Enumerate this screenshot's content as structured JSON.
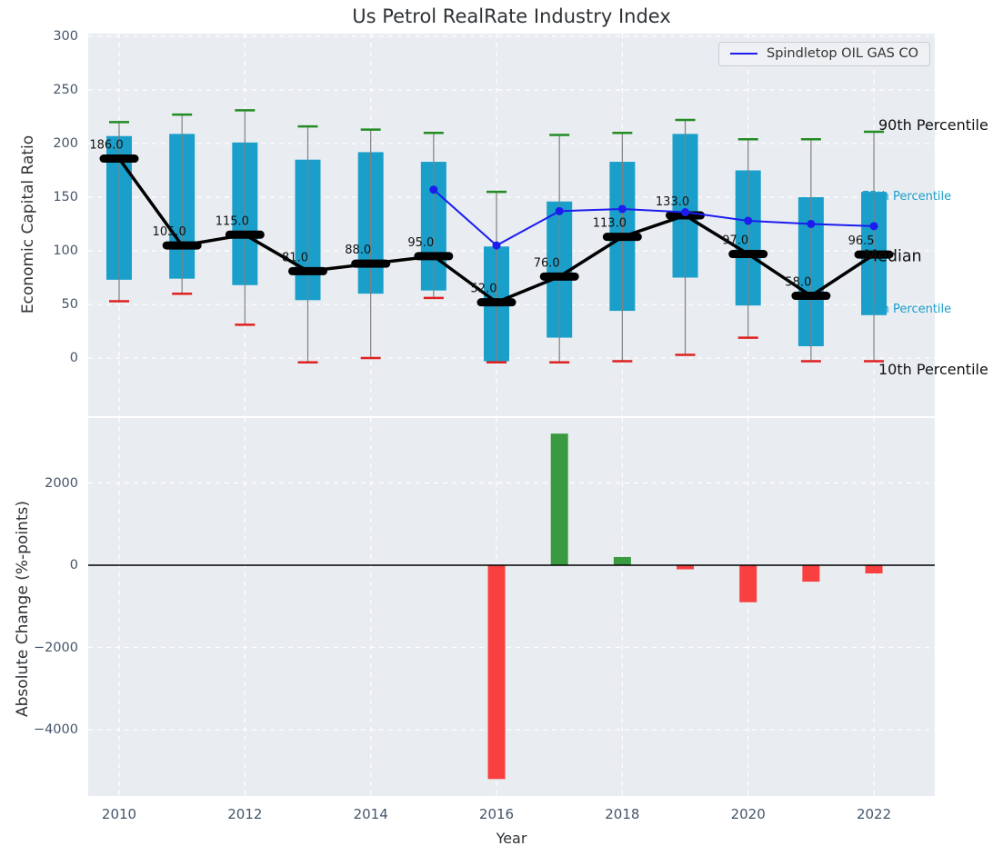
{
  "title": "Us Petrol RealRate Industry Index",
  "legend": {
    "label": "Spindletop OIL GAS CO",
    "line_color": "#1c1cee"
  },
  "colors": {
    "plot_background": "#e9edf1",
    "box_fill": "#1a9fca",
    "whisker_line": "#808080",
    "p90_cap": "#228b22",
    "p10_cap": "#e02020",
    "median_line": "#000000",
    "company_line": "#1c1cee",
    "bar_positive": "#3a9a40",
    "bar_negative": "#f94040",
    "tick_label": "#44566b",
    "grid": "#ffffff"
  },
  "chart_data": [
    {
      "type": "boxplot",
      "title": "Us Petrol RealRate Industry Index",
      "ylabel": "Economic Capital Ratio",
      "ylim": [
        -55,
        305
      ],
      "yticks": [
        300,
        250,
        200,
        150,
        100,
        50,
        0
      ],
      "ytick_labels": [
        "300",
        "250",
        "200",
        "150",
        "100",
        "50",
        "0"
      ],
      "xticks": [
        2010,
        2012,
        2014,
        2016,
        2018,
        2020,
        2022
      ],
      "grid": true,
      "legend_position": "upper right",
      "categories": [
        2010,
        2011,
        2012,
        2013,
        2014,
        2015,
        2016,
        2017,
        2018,
        2019,
        2020,
        2021,
        2022
      ],
      "series": [
        {
          "name": "90th Percentile",
          "role": "p90",
          "values": [
            220,
            227,
            231,
            216,
            213,
            210,
            155,
            208,
            210,
            222,
            204,
            204,
            211
          ]
        },
        {
          "name": "75th Percentile",
          "role": "p75",
          "values": [
            207,
            209,
            201,
            185,
            192,
            183,
            104,
            146,
            183,
            209,
            175,
            150,
            155
          ]
        },
        {
          "name": "Median",
          "role": "median",
          "values": [
            186,
            105,
            115,
            81,
            88,
            95,
            52,
            76,
            113,
            133,
            97,
            58,
            96.5
          ],
          "labels": [
            "186.0",
            "105.0",
            "115.0",
            "81.0",
            "88.0",
            "95.0",
            "52.0",
            "76.0",
            "113.0",
            "133.0",
            "97.0",
            "58.0",
            "96.5"
          ]
        },
        {
          "name": "25th Percentile",
          "role": "p25",
          "values": [
            73,
            74,
            68,
            54,
            60,
            63,
            -3,
            19,
            44,
            75,
            49,
            11,
            40
          ]
        },
        {
          "name": "10th Percentile",
          "role": "p10",
          "values": [
            53,
            60,
            31,
            -4,
            0,
            56,
            -4,
            -4,
            -3,
            3,
            19,
            -3,
            -3
          ]
        },
        {
          "name": "Spindletop OIL GAS CO",
          "role": "company-line",
          "values": [
            null,
            null,
            null,
            null,
            null,
            157,
            105,
            137,
            139,
            136,
            128,
            125,
            123
          ]
        }
      ],
      "right_labels": [
        {
          "text": "90th Percentile"
        },
        {
          "text": "75th Percentile"
        },
        {
          "text": "Median"
        },
        {
          "text": "25th Percentile"
        },
        {
          "text": "10th Percentile"
        }
      ]
    },
    {
      "type": "bar",
      "ylabel": "Absolute Change (%-points)",
      "xlabel": "Year",
      "ylim": [
        -5600,
        3600
      ],
      "yticks": [
        2000,
        0,
        -2000,
        -4000
      ],
      "ytick_labels": [
        "2000",
        "0",
        "−2000",
        "−4000"
      ],
      "xticks": [
        2010,
        2012,
        2014,
        2016,
        2018,
        2020,
        2022
      ],
      "xtick_labels": [
        "2010",
        "2012",
        "2014",
        "2016",
        "2018",
        "2020",
        "2022"
      ],
      "grid": true,
      "zero_line": true,
      "categories": [
        2010,
        2011,
        2012,
        2013,
        2014,
        2015,
        2016,
        2017,
        2018,
        2019,
        2020,
        2021,
        2022
      ],
      "values": [
        null,
        null,
        null,
        null,
        null,
        null,
        -5200,
        3200,
        200,
        -100,
        -900,
        -400,
        -200
      ]
    }
  ]
}
